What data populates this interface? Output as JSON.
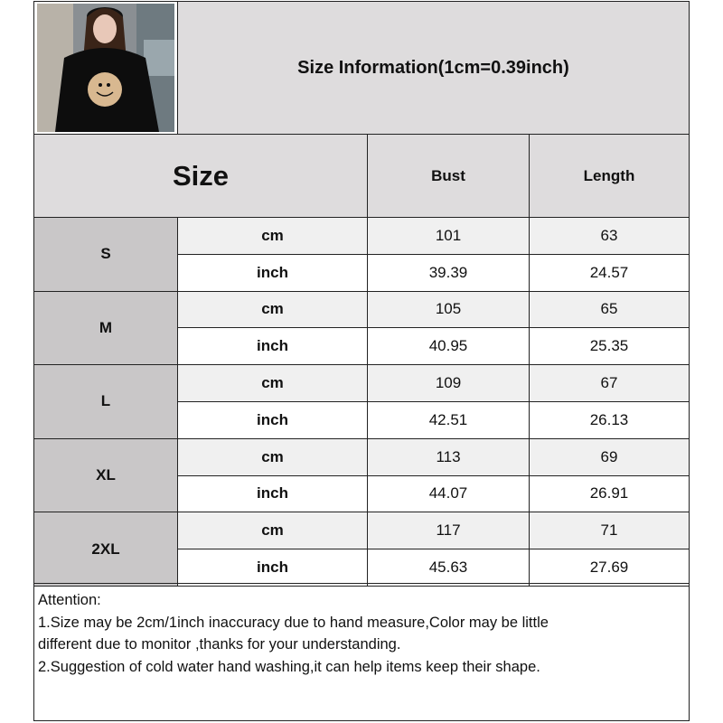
{
  "title": "Size Information(1cm=0.39inch)",
  "headers": {
    "size": "Size",
    "bust": "Bust",
    "length": "Length"
  },
  "rows": [
    {
      "size": "S",
      "cm": {
        "unit": "cm",
        "bust": "101",
        "length": "63"
      },
      "inch": {
        "unit": "inch",
        "bust": "39.39",
        "length": "24.57"
      }
    },
    {
      "size": "M",
      "cm": {
        "unit": "cm",
        "bust": "105",
        "length": "65"
      },
      "inch": {
        "unit": "inch",
        "bust": "40.95",
        "length": "25.35"
      }
    },
    {
      "size": "L",
      "cm": {
        "unit": "cm",
        "bust": "109",
        "length": "67"
      },
      "inch": {
        "unit": "inch",
        "bust": "42.51",
        "length": "26.13"
      }
    },
    {
      "size": "XL",
      "cm": {
        "unit": "cm",
        "bust": "113",
        "length": "69"
      },
      "inch": {
        "unit": "inch",
        "bust": "44.07",
        "length": "26.91"
      }
    },
    {
      "size": "2XL",
      "cm": {
        "unit": "cm",
        "bust": "117",
        "length": "71"
      },
      "inch": {
        "unit": "inch",
        "bust": "45.63",
        "length": "27.69"
      }
    }
  ],
  "attention": {
    "label": "Attention:",
    "lines": [
      "1.Size may be 2cm/1inch inaccuracy due to hand measure,Color may be little",
      "different due to monitor ,thanks for your understanding.",
      "2.Suggestion of cold water hand washing,it can help items keep their shape."
    ]
  },
  "colors": {
    "header_bg": "#dedcdd",
    "size_cell_bg": "#c9c7c8",
    "cm_row_bg": "#f0f0f0",
    "border": "#222222"
  }
}
